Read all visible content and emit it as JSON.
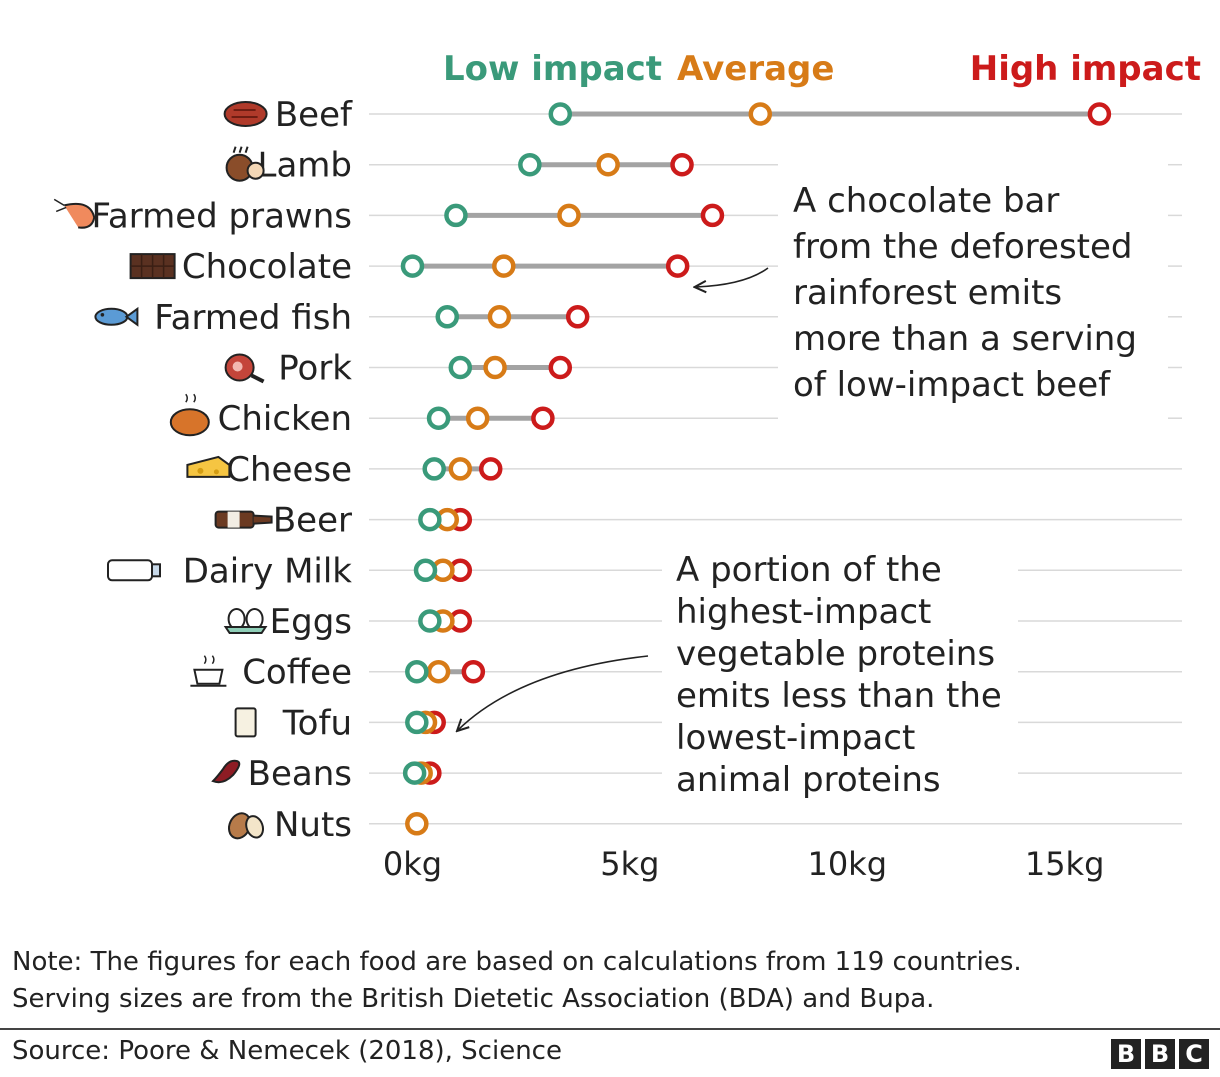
{
  "chart_data": {
    "type": "dumbbell",
    "legend": {
      "low": "Low impact",
      "average": "Average",
      "high": "High impact"
    },
    "colors": {
      "low": "#3a9a7a",
      "average": "#d77b17",
      "high": "#cc1b1b",
      "connector": "#a3a3a3",
      "grid": "#d9d9d9",
      "text": "#222222"
    },
    "x_ticks": [
      {
        "value": 0,
        "label": "0kg"
      },
      {
        "value": 5,
        "label": "5kg"
      },
      {
        "value": 10,
        "label": "10kg"
      },
      {
        "value": 15,
        "label": "15kg"
      }
    ],
    "xlim": [
      -1,
      17.7
    ],
    "items": [
      {
        "name": "Beef",
        "icon": "steak-icon",
        "low": 3.4,
        "average": 8.0,
        "high": 15.8
      },
      {
        "name": "Lamb",
        "icon": "lamb-leg-icon",
        "low": 2.7,
        "average": 4.5,
        "high": 6.2
      },
      {
        "name": "Farmed prawns",
        "icon": "prawn-icon",
        "low": 1.0,
        "average": 3.6,
        "high": 6.9
      },
      {
        "name": "Chocolate",
        "icon": "chocolate-bar-icon",
        "low": 0.0,
        "average": 2.1,
        "high": 6.1
      },
      {
        "name": "Farmed fish",
        "icon": "fish-icon",
        "low": 0.8,
        "average": 2.0,
        "high": 3.8
      },
      {
        "name": "Pork",
        "icon": "ham-icon",
        "low": 1.1,
        "average": 1.9,
        "high": 3.4
      },
      {
        "name": "Chicken",
        "icon": "roast-chicken-icon",
        "low": 0.6,
        "average": 1.5,
        "high": 3.0
      },
      {
        "name": "Cheese",
        "icon": "cheese-icon",
        "low": 0.5,
        "average": 1.1,
        "high": 1.8
      },
      {
        "name": "Beer",
        "icon": "beer-bottle-icon",
        "low": 0.4,
        "average": 0.8,
        "high": 1.1
      },
      {
        "name": "Dairy Milk",
        "icon": "milk-bottle-icon",
        "low": 0.3,
        "average": 0.7,
        "high": 1.1
      },
      {
        "name": "Eggs",
        "icon": "eggs-icon",
        "low": 0.4,
        "average": 0.7,
        "high": 1.1
      },
      {
        "name": "Coffee",
        "icon": "coffee-cup-icon",
        "low": 0.1,
        "average": 0.6,
        "high": 1.4
      },
      {
        "name": "Tofu",
        "icon": "tofu-icon",
        "low": 0.1,
        "average": 0.3,
        "high": 0.5
      },
      {
        "name": "Beans",
        "icon": "bean-icon",
        "low": 0.05,
        "average": 0.2,
        "high": 0.4
      },
      {
        "name": "Nuts",
        "icon": "nuts-icon",
        "low": null,
        "average": 0.1,
        "high": null
      }
    ],
    "annotations": [
      {
        "lines": [
          "A chocolate bar",
          "from the deforested",
          "rainforest emits",
          "more than a serving",
          "of low-impact beef"
        ]
      },
      {
        "lines": [
          "A portion of the",
          "highest-impact",
          "vegetable proteins",
          "emits less than the",
          "lowest-impact",
          "animal proteins"
        ]
      }
    ]
  },
  "footer": {
    "note_line1": "Note: The figures for each food are based on calculations from 119 countries.",
    "note_line2": "Serving sizes are from the British Dietetic Association (BDA) and Bupa.",
    "source": "Source: Poore & Nemecek (2018), Science",
    "logo_letters": [
      "B",
      "B",
      "C"
    ]
  }
}
